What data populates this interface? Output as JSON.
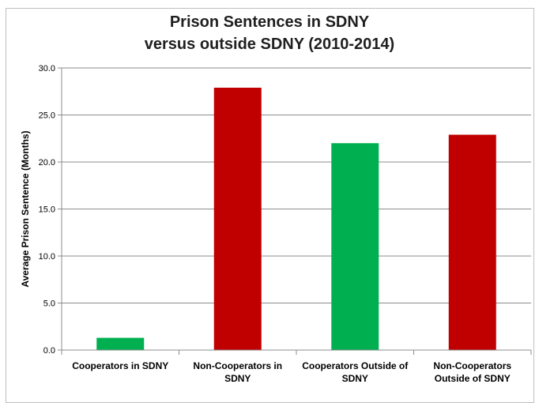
{
  "chart_data": {
    "type": "bar",
    "title_lines": [
      "Prison Sentences in SDNY",
      "versus outside SDNY (2010-2014)"
    ],
    "xlabel": "",
    "ylabel": "Average Prison Sentence (Months)",
    "ylim": [
      0,
      30
    ],
    "yticks": [
      "0.0",
      "5.0",
      "10.0",
      "15.0",
      "20.0",
      "25.0",
      "30.0"
    ],
    "grid": true,
    "legend": "none",
    "categories": [
      [
        "Cooperators in SDNY"
      ],
      [
        "Non-Cooperators in",
        "SDNY"
      ],
      [
        "Cooperators Outside of",
        "SDNY"
      ],
      [
        "Non-Cooperators",
        "Outside of SDNY"
      ]
    ],
    "values": [
      1.3,
      27.9,
      22.0,
      22.9
    ],
    "bar_colors": [
      "#00b050",
      "#c00000",
      "#00b050",
      "#c00000"
    ]
  }
}
